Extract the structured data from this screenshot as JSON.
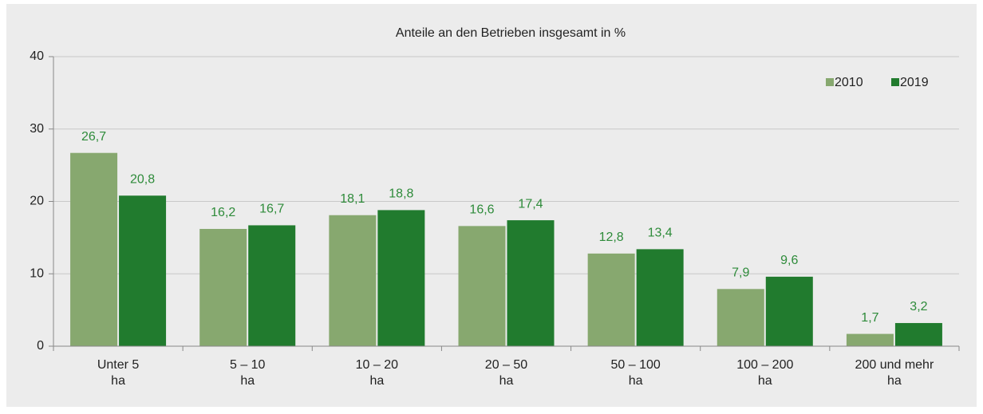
{
  "chart_data": {
    "type": "bar",
    "title": "Anteile an den Betrieben insgesamt in %",
    "categories": [
      [
        "Unter 5",
        "ha"
      ],
      [
        "5 – 10",
        "ha"
      ],
      [
        "10 – 20",
        "ha"
      ],
      [
        "20 – 50",
        "ha"
      ],
      [
        "50 – 100",
        "ha"
      ],
      [
        "100 – 200",
        "ha"
      ],
      [
        "200 und mehr",
        "ha"
      ]
    ],
    "series": [
      {
        "name": "2010",
        "color": "#87a86f",
        "values": [
          26.7,
          16.2,
          18.1,
          16.6,
          12.8,
          7.9,
          1.7
        ],
        "value_labels": [
          "26,7",
          "16,2",
          "18,1",
          "16,6",
          "12,8",
          "7,9",
          "1,7"
        ]
      },
      {
        "name": "2019",
        "color": "#217b2e",
        "values": [
          20.8,
          16.7,
          18.8,
          17.4,
          13.4,
          9.6,
          3.2
        ],
        "value_labels": [
          "20,8",
          "16,7",
          "18,8",
          "17,4",
          "13,4",
          "9,6",
          "3,2"
        ]
      }
    ],
    "ylim": [
      0,
      40
    ],
    "yticks": [
      0,
      10,
      20,
      30,
      40
    ],
    "grid": true,
    "legend": "top-right",
    "value_label_color": "#2e8b3a"
  }
}
